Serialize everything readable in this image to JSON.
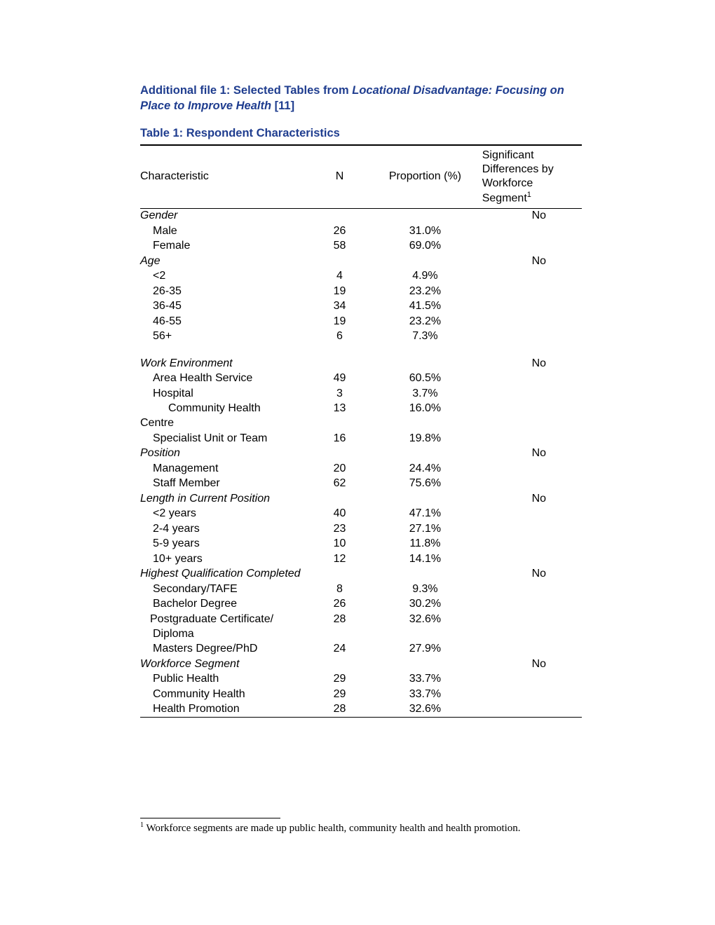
{
  "heading": {
    "prefix": "Additional file 1: Selected Tables from ",
    "italic": "Locational Disadvantage: Focusing on Place to Improve Health",
    "suffix": " [11]"
  },
  "table_title": "Table 1: Respondent Characteristics",
  "columns": {
    "characteristic": "Characteristic",
    "n": "N",
    "proportion": "Proportion (%)",
    "sig_line1": "Significant",
    "sig_line2": "Differences by",
    "sig_line3": "Workforce",
    "sig_line4_prefix": "Segment",
    "sig_line4_sup": "1"
  },
  "groups": [
    {
      "label": "Gender",
      "sig": "No",
      "rows": [
        {
          "label": "Male",
          "n": "26",
          "prop": "31.0%",
          "indent": 1
        },
        {
          "label": "Female",
          "n": "58",
          "prop": "69.0%",
          "indent": 1
        }
      ]
    },
    {
      "label": "Age",
      "sig": "No",
      "rows": [
        {
          "label": "<2",
          "n": "4",
          "prop": "4.9%",
          "indent": 1
        },
        {
          "label": "26-35",
          "n": "19",
          "prop": "23.2%",
          "indent": 1
        },
        {
          "label": "36-45",
          "n": "34",
          "prop": "41.5%",
          "indent": 1
        },
        {
          "label": "46-55",
          "n": "19",
          "prop": "23.2%",
          "indent": 1
        },
        {
          "label": "56+",
          "n": "6",
          "prop": "7.3%",
          "indent": 1
        }
      ],
      "spacer_after": true
    },
    {
      "label": "Work Environment",
      "sig": "No",
      "rows": [
        {
          "label": "Area Health Service",
          "n": "49",
          "prop": "60.5%",
          "indent": 1
        },
        {
          "label": "Hospital",
          "n": "3",
          "prop": "3.7%",
          "indent": 1
        },
        {
          "label": "Community  Health",
          "n": "13",
          "prop": "16.0%",
          "indent": 2
        },
        {
          "label": "Centre",
          "n": "",
          "prop": "",
          "indent": 0
        },
        {
          "label": "Specialist Unit or Team",
          "n": "16",
          "prop": "19.8%",
          "indent": 1
        }
      ]
    },
    {
      "label": "Position",
      "sig": "No",
      "rows": [
        {
          "label": "Management",
          "n": "20",
          "prop": "24.4%",
          "indent": 1
        },
        {
          "label": "Staff Member",
          "n": "62",
          "prop": "75.6%",
          "indent": 1
        }
      ]
    },
    {
      "label": "Length in Current Position",
      "sig": "No",
      "rows": [
        {
          "label": "<2 years",
          "n": "40",
          "prop": "47.1%",
          "indent": 1
        },
        {
          "label": "2-4 years",
          "n": "23",
          "prop": "27.1%",
          "indent": 1
        },
        {
          "label": "5-9 years",
          "n": "10",
          "prop": "11.8%",
          "indent": 1
        },
        {
          "label": "10+ years",
          "n": "12",
          "prop": "14.1%",
          "indent": 1
        }
      ]
    },
    {
      "label": "Highest Qualification Completed",
      "sig": "No",
      "rows": [
        {
          "label": "Secondary/TAFE",
          "n": "8",
          "prop": "9.3%",
          "indent": 1
        },
        {
          "label": "Bachelor Degree",
          "n": "26",
          "prop": "30.2%",
          "indent": 1
        },
        {
          "label": "Postgraduate Certificate/",
          "n": "28",
          "prop": "32.6%",
          "indent": "pg"
        },
        {
          "label": "Diploma",
          "n": "",
          "prop": "",
          "indent": 1
        },
        {
          "label": "Masters Degree/PhD",
          "n": "24",
          "prop": "27.9%",
          "indent": 1
        }
      ]
    },
    {
      "label": "Workforce Segment",
      "sig": "No",
      "rows": [
        {
          "label": "Public Health",
          "n": "29",
          "prop": "33.7%",
          "indent": 1
        },
        {
          "label": "Community Health",
          "n": "29",
          "prop": "33.7%",
          "indent": 1
        },
        {
          "label": "Health Promotion",
          "n": "28",
          "prop": "32.6%",
          "indent": 1,
          "last": true
        }
      ]
    }
  ],
  "footnote": {
    "sup": "1",
    "text": " Workforce segments are made up public health, community health and health promotion."
  }
}
